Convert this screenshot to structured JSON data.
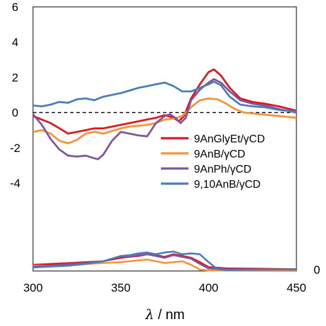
{
  "chart_data": {
    "type": "line",
    "xlabel_italic": "λ",
    "xlabel_rest": " / nm",
    "xlim": [
      300,
      450
    ],
    "ylim": [
      -9,
      6
    ],
    "x_ticks": [
      "300",
      "350",
      "400",
      "450"
    ],
    "x_tick_values": [
      300,
      350,
      400,
      450
    ],
    "y_ticks": [
      "6",
      "4",
      "2",
      "0",
      "-2",
      "-4"
    ],
    "y_tick_values": [
      6,
      4,
      2,
      0,
      -2,
      -4
    ],
    "right_tick": "0",
    "right_tick_value": -10,
    "zero_line": 0,
    "legend_position": "center-right",
    "series": [
      {
        "name": "9AnGlyEt/γCD",
        "color": "#e3161d",
        "values": [
          [
            300,
            -0.2
          ],
          [
            305,
            -0.4
          ],
          [
            310,
            -0.6
          ],
          [
            315,
            -0.9
          ],
          [
            320,
            -1.2
          ],
          [
            325,
            -1.1
          ],
          [
            330,
            -1.0
          ],
          [
            335,
            -0.9
          ],
          [
            340,
            -0.9
          ],
          [
            345,
            -0.8
          ],
          [
            350,
            -0.7
          ],
          [
            355,
            -0.6
          ],
          [
            360,
            -0.5
          ],
          [
            365,
            -0.4
          ],
          [
            370,
            -0.3
          ],
          [
            375,
            -0.15
          ],
          [
            380,
            -0.3
          ],
          [
            383,
            -0.5
          ],
          [
            386,
            -0.2
          ],
          [
            390,
            0.8
          ],
          [
            395,
            1.6
          ],
          [
            400,
            2.3
          ],
          [
            403,
            2.45
          ],
          [
            407,
            2.1
          ],
          [
            412,
            1.4
          ],
          [
            418,
            0.8
          ],
          [
            425,
            0.6
          ],
          [
            432,
            0.5
          ],
          [
            440,
            0.35
          ],
          [
            450,
            0.1
          ]
        ],
        "absorption": [
          [
            300,
            -8.65
          ],
          [
            310,
            -8.6
          ],
          [
            320,
            -8.55
          ],
          [
            330,
            -8.5
          ],
          [
            340,
            -8.45
          ],
          [
            345,
            -8.35
          ],
          [
            350,
            -8.25
          ],
          [
            355,
            -8.2
          ],
          [
            360,
            -8.15
          ],
          [
            365,
            -8.05
          ],
          [
            370,
            -8.1
          ],
          [
            375,
            -8.2
          ],
          [
            380,
            -8.05
          ],
          [
            385,
            -8.15
          ],
          [
            390,
            -8.25
          ],
          [
            395,
            -8.5
          ],
          [
            400,
            -8.78
          ],
          [
            410,
            -8.85
          ],
          [
            450,
            -8.9
          ]
        ]
      },
      {
        "name": "9AnB/γCD",
        "color": "#f2943b",
        "values": [
          [
            300,
            -1.1
          ],
          [
            305,
            -1.0
          ],
          [
            310,
            -1.2
          ],
          [
            315,
            -1.6
          ],
          [
            320,
            -1.75
          ],
          [
            325,
            -1.55
          ],
          [
            330,
            -1.2
          ],
          [
            335,
            -1.1
          ],
          [
            340,
            -1.2
          ],
          [
            345,
            -1.05
          ],
          [
            350,
            -0.9
          ],
          [
            355,
            -0.8
          ],
          [
            360,
            -0.75
          ],
          [
            365,
            -0.7
          ],
          [
            370,
            -0.6
          ],
          [
            375,
            -0.4
          ],
          [
            380,
            -0.35
          ],
          [
            385,
            -0.2
          ],
          [
            390,
            0.3
          ],
          [
            395,
            0.7
          ],
          [
            400,
            0.8
          ],
          [
            405,
            0.75
          ],
          [
            410,
            0.5
          ],
          [
            415,
            0.2
          ],
          [
            420,
            0.0
          ],
          [
            430,
            -0.1
          ],
          [
            440,
            -0.2
          ],
          [
            450,
            -0.3
          ]
        ],
        "absorption": [
          [
            300,
            -8.7
          ],
          [
            310,
            -8.7
          ],
          [
            320,
            -8.65
          ],
          [
            330,
            -8.6
          ],
          [
            340,
            -8.55
          ],
          [
            350,
            -8.5
          ],
          [
            360,
            -8.4
          ],
          [
            365,
            -8.35
          ],
          [
            370,
            -8.45
          ],
          [
            375,
            -8.55
          ],
          [
            380,
            -8.5
          ],
          [
            385,
            -8.45
          ],
          [
            390,
            -8.65
          ],
          [
            395,
            -8.92
          ],
          [
            400,
            -8.97
          ],
          [
            410,
            -8.98
          ],
          [
            450,
            -9.0
          ]
        ]
      },
      {
        "name": "9AnPh/γCD",
        "color": "#7f559e",
        "values": [
          [
            300,
            -0.1
          ],
          [
            305,
            -0.7
          ],
          [
            310,
            -1.5
          ],
          [
            315,
            -2.1
          ],
          [
            320,
            -2.45
          ],
          [
            325,
            -2.5
          ],
          [
            330,
            -2.45
          ],
          [
            335,
            -2.6
          ],
          [
            337,
            -2.65
          ],
          [
            340,
            -2.4
          ],
          [
            345,
            -1.6
          ],
          [
            350,
            -1.1
          ],
          [
            355,
            -1.2
          ],
          [
            360,
            -1.3
          ],
          [
            365,
            -1.35
          ],
          [
            370,
            -0.6
          ],
          [
            375,
            -0.2
          ],
          [
            378,
            -0.1
          ],
          [
            381,
            -0.3
          ],
          [
            384,
            -0.6
          ],
          [
            387,
            -0.3
          ],
          [
            390,
            0.7
          ],
          [
            395,
            1.3
          ],
          [
            400,
            1.7
          ],
          [
            403,
            1.9
          ],
          [
            407,
            1.7
          ],
          [
            412,
            1.2
          ],
          [
            418,
            0.7
          ],
          [
            425,
            0.5
          ],
          [
            432,
            0.4
          ],
          [
            440,
            0.2
          ],
          [
            450,
            0.0
          ]
        ],
        "absorption": [
          [
            300,
            -8.75
          ],
          [
            310,
            -8.7
          ],
          [
            320,
            -8.6
          ],
          [
            330,
            -8.55
          ],
          [
            340,
            -8.45
          ],
          [
            345,
            -8.3
          ],
          [
            350,
            -8.15
          ],
          [
            355,
            -8.2
          ],
          [
            360,
            -8.1
          ],
          [
            365,
            -8.05
          ],
          [
            370,
            -8.15
          ],
          [
            375,
            -8.25
          ],
          [
            380,
            -8.1
          ],
          [
            385,
            -8.2
          ],
          [
            390,
            -8.3
          ],
          [
            395,
            -8.6
          ],
          [
            400,
            -8.85
          ],
          [
            410,
            -8.9
          ],
          [
            450,
            -8.92
          ]
        ]
      },
      {
        "name": "9,10AnB/γCD",
        "color": "#4a7ebb",
        "values": [
          [
            300,
            0.4
          ],
          [
            305,
            0.35
          ],
          [
            310,
            0.45
          ],
          [
            315,
            0.6
          ],
          [
            320,
            0.55
          ],
          [
            325,
            0.75
          ],
          [
            330,
            0.8
          ],
          [
            335,
            0.7
          ],
          [
            340,
            0.9
          ],
          [
            345,
            1.0
          ],
          [
            350,
            1.1
          ],
          [
            355,
            1.25
          ],
          [
            360,
            1.4
          ],
          [
            365,
            1.5
          ],
          [
            370,
            1.6
          ],
          [
            375,
            1.7
          ],
          [
            380,
            1.5
          ],
          [
            385,
            1.2
          ],
          [
            390,
            1.2
          ],
          [
            395,
            1.4
          ],
          [
            400,
            1.6
          ],
          [
            403,
            1.75
          ],
          [
            407,
            1.55
          ],
          [
            412,
            0.9
          ],
          [
            418,
            0.45
          ],
          [
            425,
            0.35
          ],
          [
            432,
            0.3
          ],
          [
            440,
            0.15
          ],
          [
            450,
            0.05
          ]
        ],
        "absorption": [
          [
            300,
            -8.8
          ],
          [
            310,
            -8.75
          ],
          [
            320,
            -8.7
          ],
          [
            330,
            -8.6
          ],
          [
            340,
            -8.45
          ],
          [
            345,
            -8.3
          ],
          [
            350,
            -8.15
          ],
          [
            355,
            -8.1
          ],
          [
            360,
            -8.0
          ],
          [
            365,
            -7.95
          ],
          [
            370,
            -8.05
          ],
          [
            375,
            -7.95
          ],
          [
            380,
            -7.9
          ],
          [
            385,
            -8.05
          ],
          [
            390,
            -8.0
          ],
          [
            395,
            -8.05
          ],
          [
            400,
            -8.5
          ],
          [
            405,
            -8.9
          ],
          [
            410,
            -8.95
          ],
          [
            450,
            -8.9
          ]
        ]
      }
    ]
  }
}
